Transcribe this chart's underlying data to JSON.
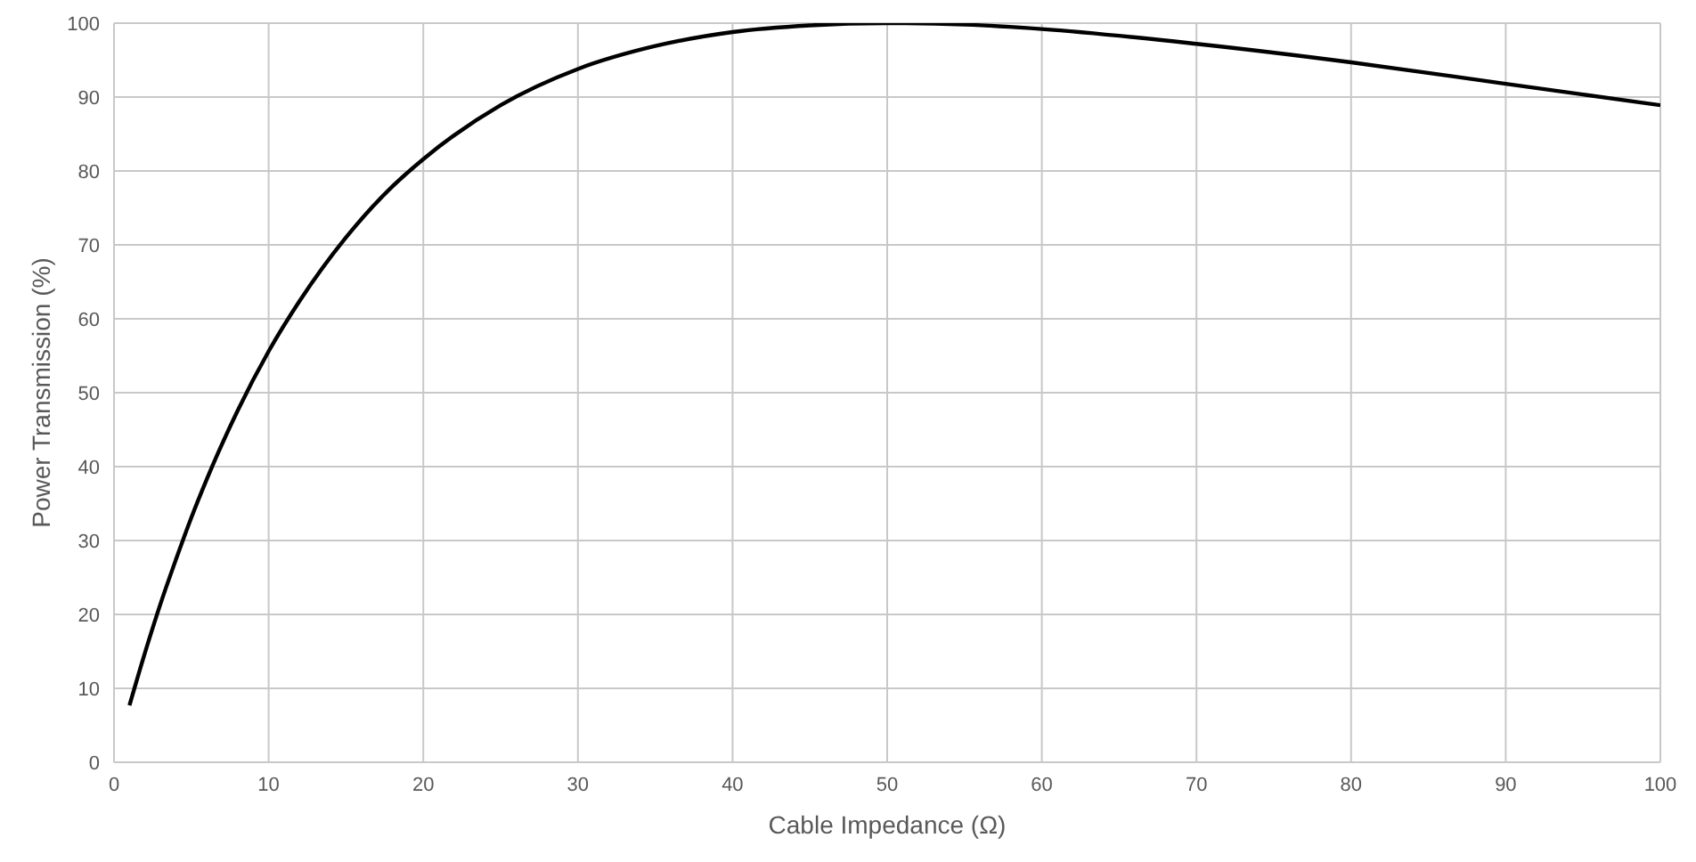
{
  "chart_data": {
    "type": "line",
    "xlabel": "Cable Impedance (Ω)",
    "ylabel": "Power Transmission (%)",
    "x": [
      1,
      2,
      3,
      4,
      5,
      6,
      8,
      10,
      12,
      15,
      18,
      20,
      25,
      30,
      35,
      40,
      45,
      50,
      55,
      60,
      70,
      80,
      90,
      100
    ],
    "series": [
      {
        "color": "#000000",
        "values": [
          7.7,
          14.8,
          21.4,
          27.4,
          33.1,
          38.3,
          47.6,
          55.6,
          62.4,
          71.0,
          77.9,
          81.6,
          88.9,
          93.8,
          96.9,
          98.8,
          99.7,
          100,
          99.8,
          99.2,
          97.2,
          94.7,
          91.8,
          88.9
        ]
      }
    ],
    "xlim": [
      0,
      100
    ],
    "xticks": [
      0,
      10,
      20,
      30,
      40,
      50,
      60,
      70,
      80,
      90,
      100
    ],
    "ylim": [
      0,
      100
    ],
    "yticks": [
      0,
      10,
      20,
      30,
      40,
      50,
      60,
      70,
      80,
      90,
      100
    ],
    "grid": true,
    "marker": "none",
    "line_style": "solid",
    "legend": false
  }
}
